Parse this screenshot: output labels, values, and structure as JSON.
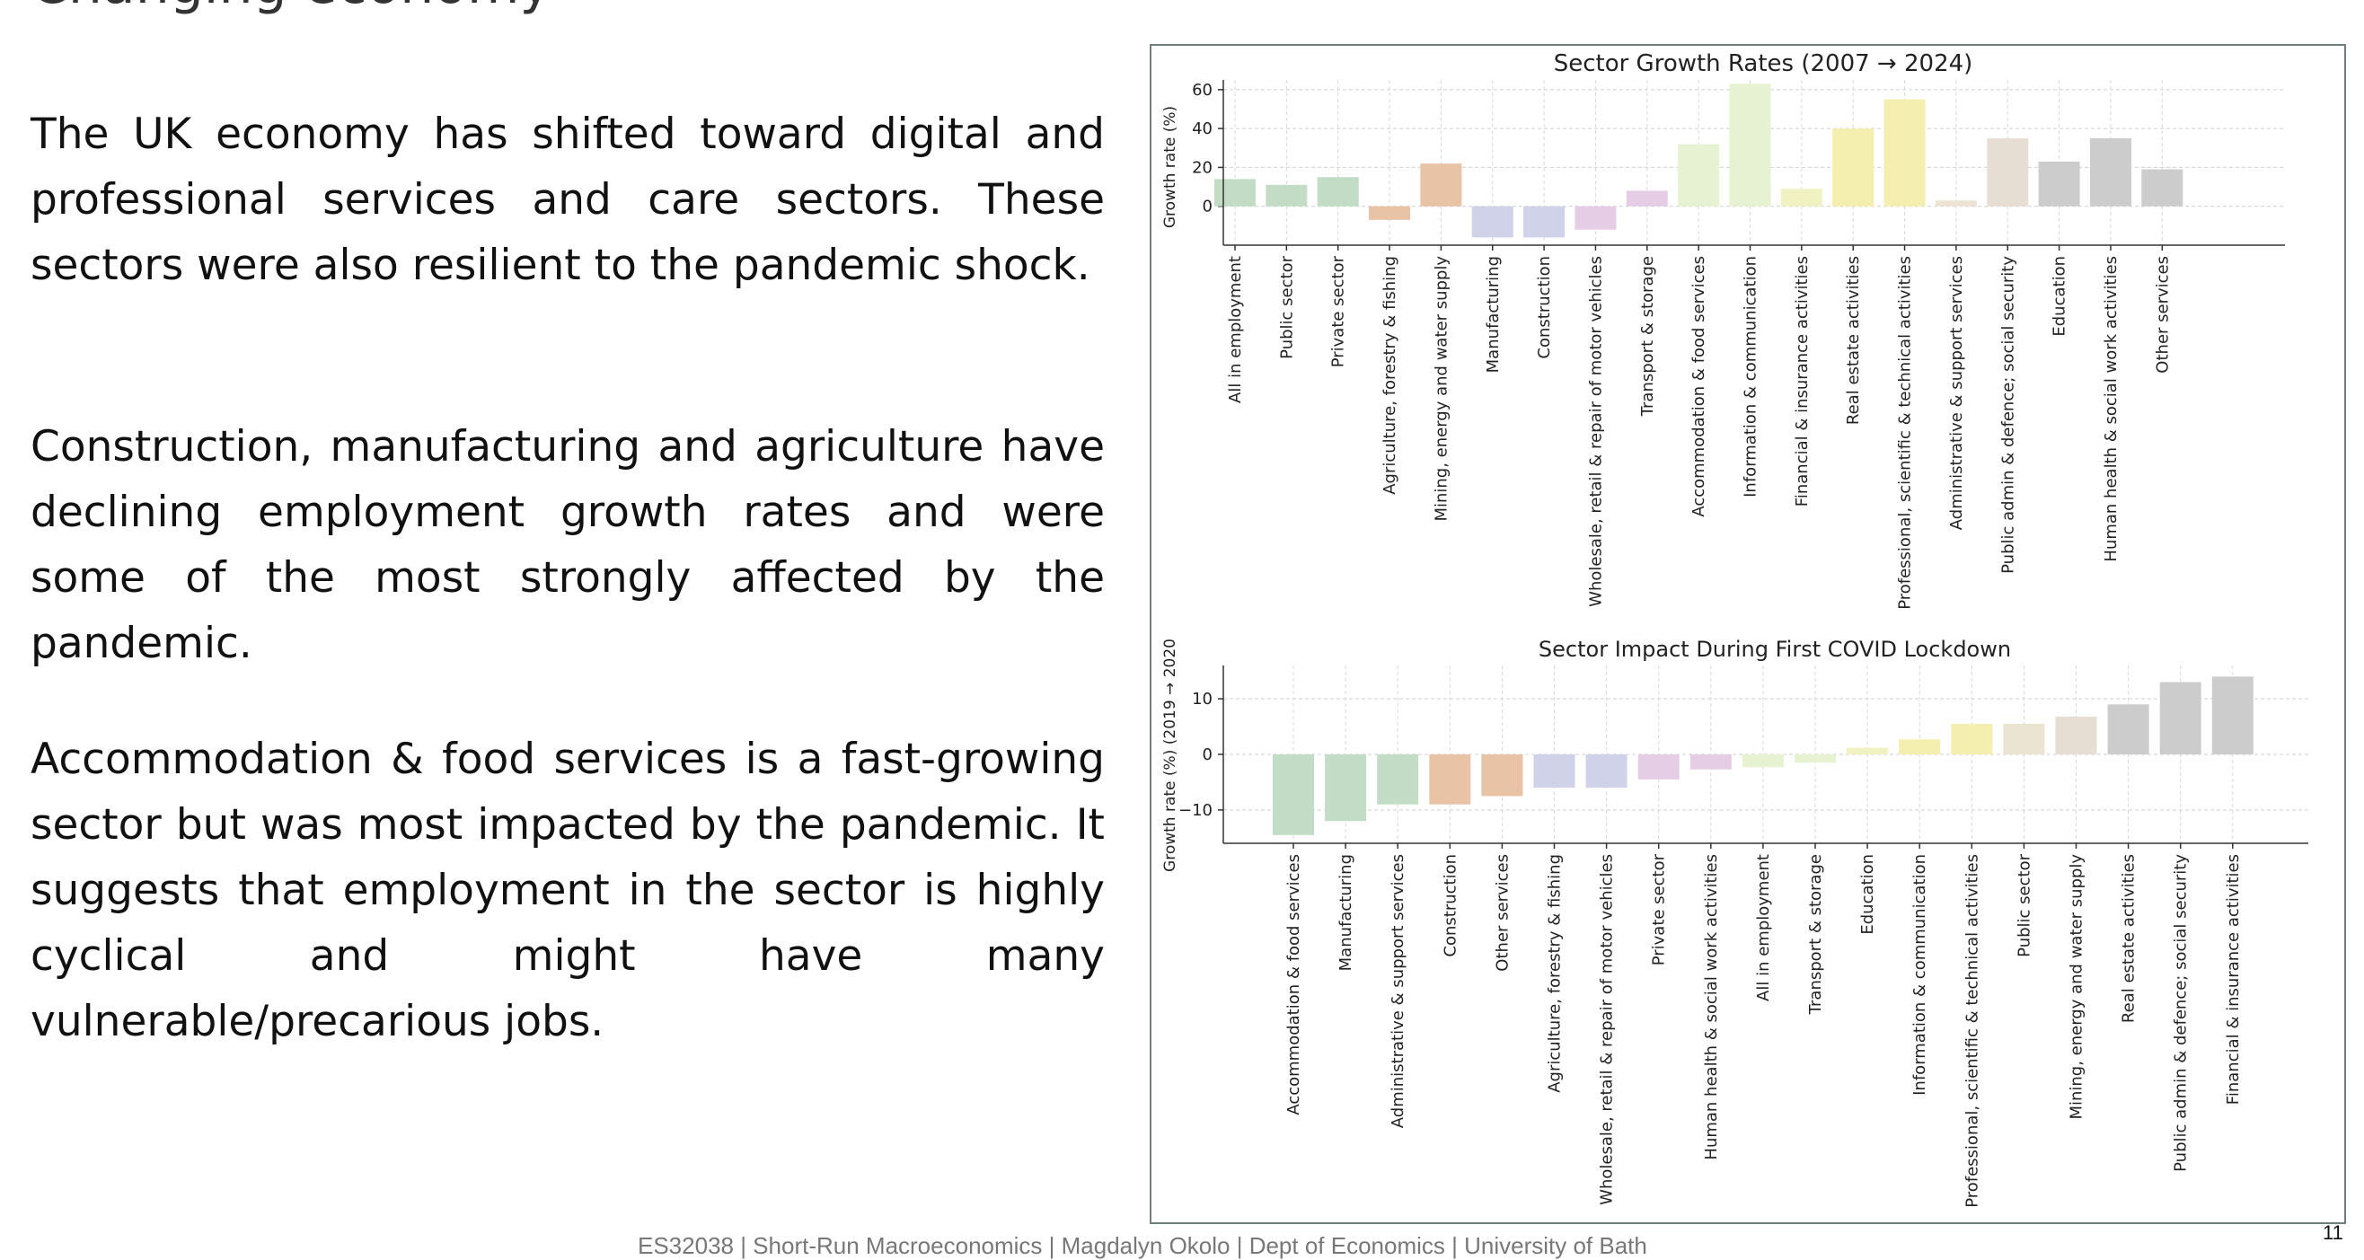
{
  "slide": {
    "title_fragment": "Changing economy",
    "paragraphs": [
      "The UK economy has shifted toward digital and professional services and care sectors. These sectors were also resilient to the pandemic shock.",
      "Construction, manufacturing and agriculture have declining employment growth rates and were some of the most strongly affected by the pandemic.",
      "Accommodation & food services is a fast-growing sector but was most impacted by the pandemic. It suggests that employment in the sector is highly cyclical and might have many vulnerable/precarious jobs."
    ],
    "footer": "ES32038 | Short-Run Macroeconomics | Magdalyn Okolo | Dept of Economics | University of Bath",
    "page_number": "11"
  },
  "chart_data": [
    {
      "type": "bar",
      "title": "Sector Growth Rates (2007 → 2024)",
      "xlabel": "",
      "ylabel": "Growth rate (%)",
      "ylim": [
        -20,
        65
      ],
      "yticks": [
        0,
        20,
        40,
        60
      ],
      "grid": true,
      "categories": [
        "All in employment",
        "Public sector",
        "Private sector",
        "Agriculture, forestry & fishing",
        "Mining, energy and water supply",
        "Manufacturing",
        "Construction",
        "Wholesale, retail & repair of motor vehicles",
        "Transport & storage",
        "Accommodation & food services",
        "Information & communication",
        "Financial & insurance activities",
        "Real estate activities",
        "Professional, scientific & technical activities",
        "Administrative & support services",
        "Public admin & defence; social security",
        "Education",
        "Human health & social work activities",
        "Other services"
      ],
      "values": [
        14,
        11,
        15,
        -7,
        22,
        -16,
        -16,
        -12,
        8,
        32,
        63,
        9,
        40,
        55,
        3,
        35,
        23,
        35,
        19
      ],
      "colors": [
        "#c2dcc6",
        "#c2dcc6",
        "#c2dcc6",
        "#e9c3a5",
        "#e9c3a5",
        "#cfd2e8",
        "#cfd2e8",
        "#e6cde6",
        "#e6cde6",
        "#e6f2d2",
        "#e6f2d2",
        "#f1f2c2",
        "#f4efae",
        "#f4efae",
        "#ece4d2",
        "#e6ded2",
        "#cccccc",
        "#cccccc",
        "#cccccc"
      ]
    },
    {
      "type": "bar",
      "title": "Sector Impact During First COVID Lockdown",
      "xlabel": "",
      "ylabel": "Growth rate (%) (2019 → 2020",
      "ylim": [
        -16,
        16
      ],
      "yticks": [
        -10,
        0,
        10
      ],
      "grid": true,
      "categories": [
        "Accommodation & food services",
        "Manufacturing",
        "Administrative & support services",
        "Construction",
        "Other services",
        "Agriculture, forestry & fishing",
        "Wholesale, retail & repair of motor vehicles",
        "Private sector",
        "Human health & social work activities",
        "All in employment",
        "Transport & storage",
        "Education",
        "Information & communication",
        "Professional, scientific & technical activities",
        "Public sector",
        "Mining, energy and water supply",
        "Real estate activities",
        "Public admin & defence; social security",
        "Financial & insurance activities"
      ],
      "values": [
        -14.5,
        -12,
        -9,
        -9,
        -7.5,
        -6,
        -6,
        -4.5,
        -2.7,
        -2.3,
        -1.5,
        1.2,
        2.7,
        5.5,
        5.5,
        6.8,
        9,
        13,
        14
      ],
      "colors": [
        "#c2dcc6",
        "#c2dcc6",
        "#c2dcc6",
        "#e9c3a5",
        "#e9c3a5",
        "#cfd2e8",
        "#cfd2e8",
        "#e6cde6",
        "#e6cde6",
        "#e6f2d2",
        "#e6f2d2",
        "#f1f2c2",
        "#f4efae",
        "#f4efae",
        "#ece4d2",
        "#e6ded2",
        "#cccccc",
        "#cccccc",
        "#cccccc"
      ]
    }
  ]
}
